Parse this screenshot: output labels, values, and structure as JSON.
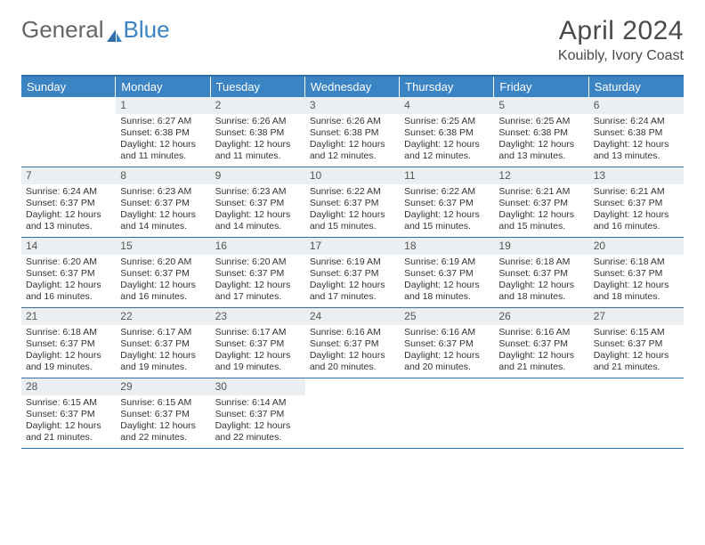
{
  "logo": {
    "text1": "General",
    "text2": "Blue"
  },
  "title": "April 2024",
  "location": "Kouibly, Ivory Coast",
  "header_color": "#3a84c4",
  "border_color": "#2f6ea8",
  "daynum_bg": "#eceff1",
  "day_names": [
    "Sunday",
    "Monday",
    "Tuesday",
    "Wednesday",
    "Thursday",
    "Friday",
    "Saturday"
  ],
  "weeks": [
    [
      null,
      {
        "n": "1",
        "sr": "Sunrise: 6:27 AM",
        "ss": "Sunset: 6:38 PM",
        "d1": "Daylight: 12 hours",
        "d2": "and 11 minutes."
      },
      {
        "n": "2",
        "sr": "Sunrise: 6:26 AM",
        "ss": "Sunset: 6:38 PM",
        "d1": "Daylight: 12 hours",
        "d2": "and 11 minutes."
      },
      {
        "n": "3",
        "sr": "Sunrise: 6:26 AM",
        "ss": "Sunset: 6:38 PM",
        "d1": "Daylight: 12 hours",
        "d2": "and 12 minutes."
      },
      {
        "n": "4",
        "sr": "Sunrise: 6:25 AM",
        "ss": "Sunset: 6:38 PM",
        "d1": "Daylight: 12 hours",
        "d2": "and 12 minutes."
      },
      {
        "n": "5",
        "sr": "Sunrise: 6:25 AM",
        "ss": "Sunset: 6:38 PM",
        "d1": "Daylight: 12 hours",
        "d2": "and 13 minutes."
      },
      {
        "n": "6",
        "sr": "Sunrise: 6:24 AM",
        "ss": "Sunset: 6:38 PM",
        "d1": "Daylight: 12 hours",
        "d2": "and 13 minutes."
      }
    ],
    [
      {
        "n": "7",
        "sr": "Sunrise: 6:24 AM",
        "ss": "Sunset: 6:37 PM",
        "d1": "Daylight: 12 hours",
        "d2": "and 13 minutes."
      },
      {
        "n": "8",
        "sr": "Sunrise: 6:23 AM",
        "ss": "Sunset: 6:37 PM",
        "d1": "Daylight: 12 hours",
        "d2": "and 14 minutes."
      },
      {
        "n": "9",
        "sr": "Sunrise: 6:23 AM",
        "ss": "Sunset: 6:37 PM",
        "d1": "Daylight: 12 hours",
        "d2": "and 14 minutes."
      },
      {
        "n": "10",
        "sr": "Sunrise: 6:22 AM",
        "ss": "Sunset: 6:37 PM",
        "d1": "Daylight: 12 hours",
        "d2": "and 15 minutes."
      },
      {
        "n": "11",
        "sr": "Sunrise: 6:22 AM",
        "ss": "Sunset: 6:37 PM",
        "d1": "Daylight: 12 hours",
        "d2": "and 15 minutes."
      },
      {
        "n": "12",
        "sr": "Sunrise: 6:21 AM",
        "ss": "Sunset: 6:37 PM",
        "d1": "Daylight: 12 hours",
        "d2": "and 15 minutes."
      },
      {
        "n": "13",
        "sr": "Sunrise: 6:21 AM",
        "ss": "Sunset: 6:37 PM",
        "d1": "Daylight: 12 hours",
        "d2": "and 16 minutes."
      }
    ],
    [
      {
        "n": "14",
        "sr": "Sunrise: 6:20 AM",
        "ss": "Sunset: 6:37 PM",
        "d1": "Daylight: 12 hours",
        "d2": "and 16 minutes."
      },
      {
        "n": "15",
        "sr": "Sunrise: 6:20 AM",
        "ss": "Sunset: 6:37 PM",
        "d1": "Daylight: 12 hours",
        "d2": "and 16 minutes."
      },
      {
        "n": "16",
        "sr": "Sunrise: 6:20 AM",
        "ss": "Sunset: 6:37 PM",
        "d1": "Daylight: 12 hours",
        "d2": "and 17 minutes."
      },
      {
        "n": "17",
        "sr": "Sunrise: 6:19 AM",
        "ss": "Sunset: 6:37 PM",
        "d1": "Daylight: 12 hours",
        "d2": "and 17 minutes."
      },
      {
        "n": "18",
        "sr": "Sunrise: 6:19 AM",
        "ss": "Sunset: 6:37 PM",
        "d1": "Daylight: 12 hours",
        "d2": "and 18 minutes."
      },
      {
        "n": "19",
        "sr": "Sunrise: 6:18 AM",
        "ss": "Sunset: 6:37 PM",
        "d1": "Daylight: 12 hours",
        "d2": "and 18 minutes."
      },
      {
        "n": "20",
        "sr": "Sunrise: 6:18 AM",
        "ss": "Sunset: 6:37 PM",
        "d1": "Daylight: 12 hours",
        "d2": "and 18 minutes."
      }
    ],
    [
      {
        "n": "21",
        "sr": "Sunrise: 6:18 AM",
        "ss": "Sunset: 6:37 PM",
        "d1": "Daylight: 12 hours",
        "d2": "and 19 minutes."
      },
      {
        "n": "22",
        "sr": "Sunrise: 6:17 AM",
        "ss": "Sunset: 6:37 PM",
        "d1": "Daylight: 12 hours",
        "d2": "and 19 minutes."
      },
      {
        "n": "23",
        "sr": "Sunrise: 6:17 AM",
        "ss": "Sunset: 6:37 PM",
        "d1": "Daylight: 12 hours",
        "d2": "and 19 minutes."
      },
      {
        "n": "24",
        "sr": "Sunrise: 6:16 AM",
        "ss": "Sunset: 6:37 PM",
        "d1": "Daylight: 12 hours",
        "d2": "and 20 minutes."
      },
      {
        "n": "25",
        "sr": "Sunrise: 6:16 AM",
        "ss": "Sunset: 6:37 PM",
        "d1": "Daylight: 12 hours",
        "d2": "and 20 minutes."
      },
      {
        "n": "26",
        "sr": "Sunrise: 6:16 AM",
        "ss": "Sunset: 6:37 PM",
        "d1": "Daylight: 12 hours",
        "d2": "and 21 minutes."
      },
      {
        "n": "27",
        "sr": "Sunrise: 6:15 AM",
        "ss": "Sunset: 6:37 PM",
        "d1": "Daylight: 12 hours",
        "d2": "and 21 minutes."
      }
    ],
    [
      {
        "n": "28",
        "sr": "Sunrise: 6:15 AM",
        "ss": "Sunset: 6:37 PM",
        "d1": "Daylight: 12 hours",
        "d2": "and 21 minutes."
      },
      {
        "n": "29",
        "sr": "Sunrise: 6:15 AM",
        "ss": "Sunset: 6:37 PM",
        "d1": "Daylight: 12 hours",
        "d2": "and 22 minutes."
      },
      {
        "n": "30",
        "sr": "Sunrise: 6:14 AM",
        "ss": "Sunset: 6:37 PM",
        "d1": "Daylight: 12 hours",
        "d2": "and 22 minutes."
      },
      null,
      null,
      null,
      null
    ]
  ]
}
